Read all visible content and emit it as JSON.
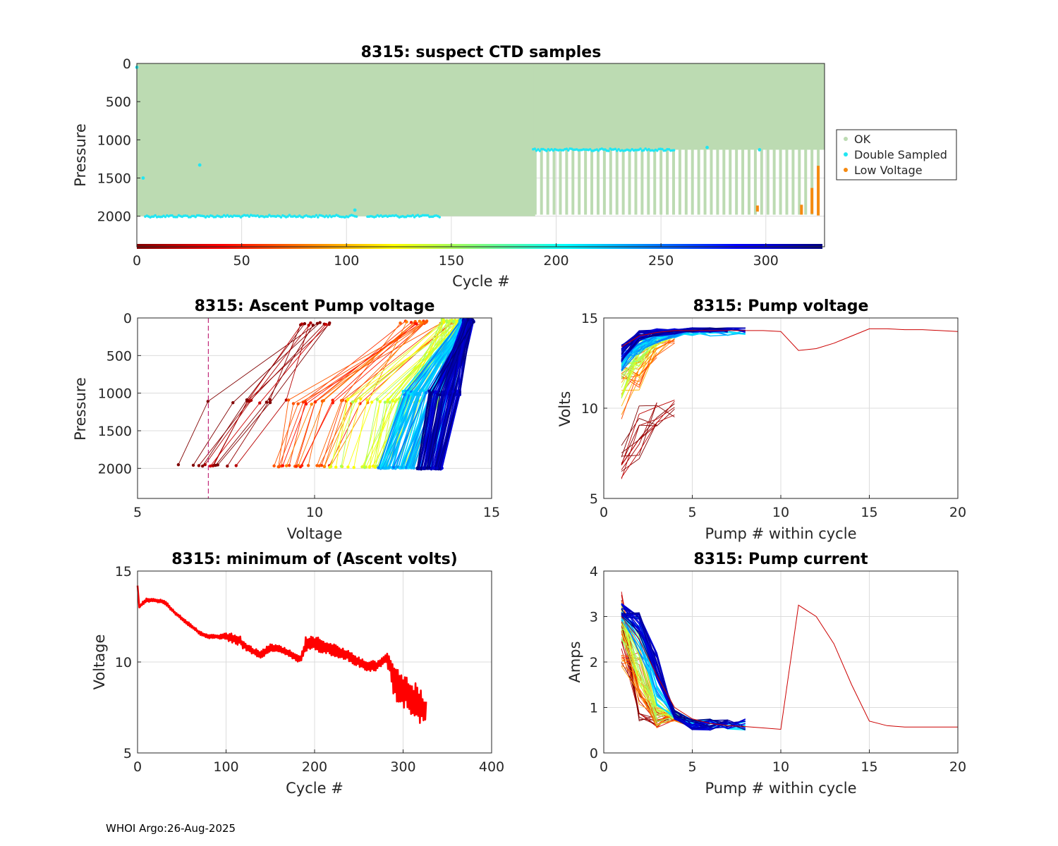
{
  "footer": "WHOI Argo:26-Aug-2025",
  "colors": {
    "ok": "#bcdbb2",
    "double_sampled": "#22e6f2",
    "low_voltage": "#f58a10",
    "threshold_line": "#c22a7a",
    "min_volts_line": "#ff0000",
    "grid": "#dcdcdc",
    "axis": "#262626"
  },
  "chart_data": [
    {
      "id": "suspect",
      "type": "scatter",
      "title": "8315: suspect CTD samples",
      "xlabel": "Cycle #",
      "ylabel": "Pressure",
      "xlim": [
        0,
        328
      ],
      "ylim": [
        2400,
        0
      ],
      "xticks": [
        0,
        50,
        100,
        150,
        200,
        250,
        300
      ],
      "yticks": [
        0,
        500,
        1000,
        1500,
        2000
      ],
      "legend": {
        "position": "right-outside",
        "entries": [
          "OK",
          "Double Sampled",
          "Low Voltage"
        ]
      },
      "ok_dense_region": {
        "cycles": [
          0,
          190
        ],
        "pressure": [
          0,
          2000
        ]
      },
      "ok_profiles_after_190": {
        "cycle_start": 190,
        "cycle_end": 327,
        "step": 3,
        "p_top": 0,
        "p_bottom": 1980
      },
      "ok_overlay_zone": {
        "cycles": [
          190,
          328
        ],
        "pressure": [
          0,
          1130
        ]
      },
      "double_sampled": {
        "bottom_band": {
          "cycles": [
            4,
            105
          ],
          "pressure": 2000
        },
        "bottom_band_2": {
          "cycles": [
            110,
            145
          ],
          "pressure": 2000
        },
        "upper_band": {
          "cycles": [
            189,
            257
          ],
          "pressure": 1130
        },
        "points": [
          {
            "cycle": 0,
            "pressure": 50
          },
          {
            "cycle": 3,
            "pressure": 1500
          },
          {
            "cycle": 30,
            "pressure": 1330
          },
          {
            "cycle": 104,
            "pressure": 1920
          },
          {
            "cycle": 272,
            "pressure": 1100
          },
          {
            "cycle": 297,
            "pressure": 1130
          }
        ]
      },
      "low_voltage": [
        {
          "cycle": 296,
          "p_from": 1860,
          "p_to": 1940
        },
        {
          "cycle": 317,
          "p_from": 1850,
          "p_to": 1980
        },
        {
          "cycle": 322,
          "p_from": 1630,
          "p_to": 1970
        },
        {
          "cycle": 325,
          "p_from": 1340,
          "p_to": 1990
        }
      ],
      "cycle_color_strip": {
        "cycles": [
          0,
          327
        ],
        "colormap": "jet-reversed"
      }
    },
    {
      "id": "ascent",
      "type": "line",
      "title": "8315: Ascent Pump voltage",
      "xlabel": "Voltage",
      "ylabel": "Pressure",
      "xlim": [
        5,
        15
      ],
      "ylim": [
        2400,
        0
      ],
      "xticks": [
        5,
        10,
        15
      ],
      "yticks": [
        0,
        500,
        1000,
        1500,
        2000
      ],
      "threshold_voltage": 7.0,
      "groups": [
        {
          "t": 0.02,
          "count": 12,
          "v_deep": [
            6.0,
            7.8
          ],
          "p_deep": 1960,
          "v_mid": [
            6.9,
            9.2
          ],
          "p_mid": 1110,
          "v_top": [
            9.6,
            10.6
          ],
          "p_top": 60
        },
        {
          "t": 0.2,
          "count": 20,
          "v_deep": [
            8.8,
            10.6
          ],
          "p_deep": 1970,
          "v_mid": [
            9.2,
            11.5
          ],
          "p_mid": 1120,
          "v_top": [
            12.4,
            14.0
          ],
          "p_top": 40
        },
        {
          "t": 0.42,
          "count": 40,
          "v_deep": [
            10.4,
            12.8
          ],
          "p_deep": 1980,
          "v_mid": [
            11.0,
            13.5
          ],
          "p_mid": 1100,
          "v_top": [
            13.6,
            14.3
          ],
          "p_top": 20
        },
        {
          "t": 0.7,
          "count": 50,
          "v_deep": [
            11.8,
            13.3
          ],
          "p_deep": 1990,
          "v_mid": [
            12.6,
            13.9
          ],
          "p_mid": 1000,
          "v_top": [
            14.1,
            14.4
          ],
          "p_top": 20
        },
        {
          "t": 0.95,
          "count": 60,
          "v_deep": [
            12.9,
            13.6
          ],
          "p_deep": 2000,
          "v_mid": [
            13.3,
            14.1
          ],
          "p_mid": 1000,
          "v_top": [
            14.2,
            14.5
          ],
          "p_top": 20
        }
      ]
    },
    {
      "id": "pumpv",
      "type": "line",
      "title": "8315: Pump voltage",
      "xlabel": "Pump # within cycle",
      "ylabel": "Volts",
      "xlim": [
        0,
        20
      ],
      "ylim": [
        5,
        15
      ],
      "xticks": [
        0,
        5,
        10,
        15,
        20
      ],
      "yticks": [
        5,
        10,
        15
      ],
      "long_profile": {
        "x": [
          1,
          2,
          3,
          4,
          5,
          6,
          7,
          8,
          9,
          10,
          11,
          12,
          13,
          14,
          15,
          16,
          17,
          18,
          19,
          20
        ],
        "y": [
          13.4,
          14.0,
          14.2,
          14.3,
          14.3,
          14.3,
          14.3,
          14.3,
          14.3,
          14.25,
          13.2,
          13.3,
          13.6,
          14.0,
          14.4,
          14.4,
          14.35,
          14.35,
          14.3,
          14.25
        ]
      },
      "groups": [
        {
          "t": 0.02,
          "count": 12,
          "y1": [
            6.0,
            8.0
          ],
          "y2": [
            7.0,
            10.5
          ],
          "y3": [
            9.0,
            10.5
          ],
          "y4": [
            9.5,
            10.5
          ]
        },
        {
          "t": 0.25,
          "count": 18,
          "y1": [
            9.3,
            12.5
          ],
          "y2": [
            11.0,
            13.4
          ],
          "y3": [
            12.8,
            14.0
          ],
          "y4": [
            13.6,
            14.2
          ]
        },
        {
          "t": 0.45,
          "count": 22,
          "y1": [
            10.5,
            13.0
          ],
          "y2": [
            12.3,
            13.8
          ],
          "y3": [
            13.4,
            14.1
          ],
          "y4": [
            13.9,
            14.2
          ]
        },
        {
          "t": 0.7,
          "count": 22,
          "y1": [
            12.0,
            13.3
          ],
          "y2": [
            13.0,
            14.0
          ],
          "y3": [
            13.6,
            14.2
          ],
          "y4": [
            13.9,
            14.3
          ]
        },
        {
          "t": 0.95,
          "count": 28,
          "y1": [
            12.5,
            13.5
          ],
          "y2": [
            13.7,
            14.3
          ],
          "y3": [
            14.0,
            14.4
          ],
          "y4": [
            14.1,
            14.4
          ]
        }
      ]
    },
    {
      "id": "minv",
      "type": "line",
      "title": "8315: minimum of (Ascent volts)",
      "xlabel": "Cycle #",
      "ylabel": "Voltage",
      "xlim": [
        0,
        400
      ],
      "ylim": [
        5,
        15
      ],
      "xticks": [
        0,
        100,
        200,
        300,
        400
      ],
      "yticks": [
        5,
        10,
        15
      ],
      "x": [
        0,
        2,
        5,
        10,
        20,
        30,
        35,
        40,
        50,
        60,
        70,
        80,
        90,
        100,
        110,
        115,
        120,
        130,
        140,
        145,
        150,
        160,
        170,
        180,
        185,
        190,
        200,
        210,
        220,
        230,
        240,
        250,
        260,
        270,
        280,
        285,
        290,
        295,
        300,
        305,
        310,
        315,
        320,
        325
      ],
      "y": [
        14.2,
        13.0,
        13.2,
        13.4,
        13.4,
        13.3,
        13.1,
        12.8,
        12.4,
        12.0,
        11.6,
        11.4,
        11.4,
        11.4,
        11.3,
        11.2,
        10.9,
        10.6,
        10.4,
        10.6,
        10.8,
        10.7,
        10.5,
        10.2,
        10.2,
        11.0,
        11.0,
        10.9,
        10.7,
        10.5,
        10.3,
        10.0,
        9.8,
        9.8,
        10.2,
        10.0,
        8.8,
        8.6,
        8.5,
        8.2,
        8.0,
        7.9,
        7.5,
        7.2
      ],
      "noise": [
        0,
        0,
        0.1,
        0.1,
        0.1,
        0.1,
        0.1,
        0.1,
        0.1,
        0.1,
        0.1,
        0.1,
        0.1,
        0.2,
        0.3,
        0.3,
        0.2,
        0.2,
        0.2,
        0.3,
        0.2,
        0.2,
        0.2,
        0.2,
        0.2,
        0.4,
        0.4,
        0.4,
        0.35,
        0.3,
        0.3,
        0.3,
        0.3,
        0.3,
        0.3,
        0.6,
        0.9,
        1.0,
        1.0,
        1.0,
        1.0,
        1.0,
        1.0,
        0.8
      ]
    },
    {
      "id": "pumpi",
      "type": "line",
      "title": "8315: Pump current",
      "xlabel": "Pump # within cycle",
      "ylabel": "Amps",
      "xlim": [
        0,
        20
      ],
      "ylim": [
        0,
        4
      ],
      "xticks": [
        0,
        5,
        10,
        15,
        20
      ],
      "yticks": [
        0,
        1,
        2,
        3,
        4
      ],
      "long_profile": {
        "x": [
          1,
          2,
          3,
          4,
          5,
          6,
          7,
          8,
          9,
          10,
          11,
          12,
          13,
          14,
          15,
          16,
          17,
          18,
          19,
          20
        ],
        "y": [
          3.0,
          2.5,
          1.7,
          1.0,
          0.75,
          0.65,
          0.6,
          0.58,
          0.55,
          0.52,
          3.25,
          3.0,
          2.4,
          1.5,
          0.7,
          0.6,
          0.57,
          0.57,
          0.57,
          0.57
        ]
      },
      "groups": [
        {
          "t": 0.02,
          "count": 14,
          "y1": [
            1.8,
            3.6
          ],
          "y2": [
            0.5,
            1.5
          ],
          "y3": [
            0.5,
            0.9
          ]
        },
        {
          "t": 0.22,
          "count": 18,
          "y1": [
            1.9,
            3.4
          ],
          "y2": [
            1.0,
            2.4
          ],
          "y3": [
            0.55,
            1.0
          ]
        },
        {
          "t": 0.45,
          "count": 18,
          "y1": [
            2.5,
            3.3
          ],
          "y2": [
            1.5,
            2.6
          ],
          "y3": [
            0.6,
            1.2
          ]
        },
        {
          "t": 0.7,
          "count": 16,
          "y1": [
            2.9,
            3.2
          ],
          "y2": [
            2.2,
            3.0
          ],
          "y3": [
            1.0,
            1.8
          ]
        },
        {
          "t": 0.95,
          "count": 22,
          "y1": [
            3.0,
            3.3
          ],
          "y2": [
            2.6,
            3.1
          ],
          "y3": [
            1.6,
            2.2
          ]
        }
      ]
    }
  ]
}
